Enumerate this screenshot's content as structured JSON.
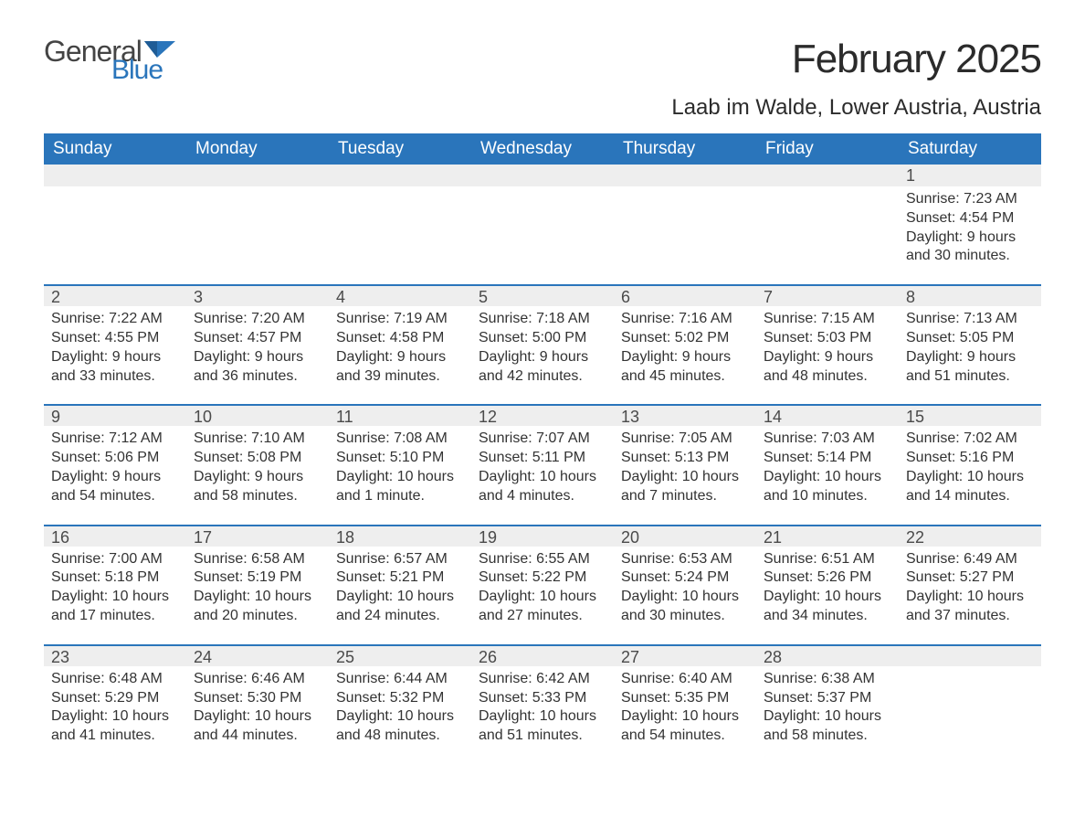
{
  "branding": {
    "logo_word1": "General",
    "logo_word2": "Blue",
    "logo_text_color": "#444444",
    "logo_accent_color": "#2a75bb"
  },
  "header": {
    "month_title": "February 2025",
    "location": "Laab im Walde, Lower Austria, Austria"
  },
  "calendar": {
    "header_bg": "#2a75bb",
    "header_fg": "#ffffff",
    "row_separator_color": "#2a75bb",
    "daynum_bg": "#eeeeee",
    "text_color": "#333333",
    "day_headers": [
      "Sunday",
      "Monday",
      "Tuesday",
      "Wednesday",
      "Thursday",
      "Friday",
      "Saturday"
    ],
    "weeks": [
      [
        {
          "day": "",
          "sunrise": "",
          "sunset": "",
          "daylight1": "",
          "daylight2": ""
        },
        {
          "day": "",
          "sunrise": "",
          "sunset": "",
          "daylight1": "",
          "daylight2": ""
        },
        {
          "day": "",
          "sunrise": "",
          "sunset": "",
          "daylight1": "",
          "daylight2": ""
        },
        {
          "day": "",
          "sunrise": "",
          "sunset": "",
          "daylight1": "",
          "daylight2": ""
        },
        {
          "day": "",
          "sunrise": "",
          "sunset": "",
          "daylight1": "",
          "daylight2": ""
        },
        {
          "day": "",
          "sunrise": "",
          "sunset": "",
          "daylight1": "",
          "daylight2": ""
        },
        {
          "day": "1",
          "sunrise": "Sunrise: 7:23 AM",
          "sunset": "Sunset: 4:54 PM",
          "daylight1": "Daylight: 9 hours",
          "daylight2": "and 30 minutes."
        }
      ],
      [
        {
          "day": "2",
          "sunrise": "Sunrise: 7:22 AM",
          "sunset": "Sunset: 4:55 PM",
          "daylight1": "Daylight: 9 hours",
          "daylight2": "and 33 minutes."
        },
        {
          "day": "3",
          "sunrise": "Sunrise: 7:20 AM",
          "sunset": "Sunset: 4:57 PM",
          "daylight1": "Daylight: 9 hours",
          "daylight2": "and 36 minutes."
        },
        {
          "day": "4",
          "sunrise": "Sunrise: 7:19 AM",
          "sunset": "Sunset: 4:58 PM",
          "daylight1": "Daylight: 9 hours",
          "daylight2": "and 39 minutes."
        },
        {
          "day": "5",
          "sunrise": "Sunrise: 7:18 AM",
          "sunset": "Sunset: 5:00 PM",
          "daylight1": "Daylight: 9 hours",
          "daylight2": "and 42 minutes."
        },
        {
          "day": "6",
          "sunrise": "Sunrise: 7:16 AM",
          "sunset": "Sunset: 5:02 PM",
          "daylight1": "Daylight: 9 hours",
          "daylight2": "and 45 minutes."
        },
        {
          "day": "7",
          "sunrise": "Sunrise: 7:15 AM",
          "sunset": "Sunset: 5:03 PM",
          "daylight1": "Daylight: 9 hours",
          "daylight2": "and 48 minutes."
        },
        {
          "day": "8",
          "sunrise": "Sunrise: 7:13 AM",
          "sunset": "Sunset: 5:05 PM",
          "daylight1": "Daylight: 9 hours",
          "daylight2": "and 51 minutes."
        }
      ],
      [
        {
          "day": "9",
          "sunrise": "Sunrise: 7:12 AM",
          "sunset": "Sunset: 5:06 PM",
          "daylight1": "Daylight: 9 hours",
          "daylight2": "and 54 minutes."
        },
        {
          "day": "10",
          "sunrise": "Sunrise: 7:10 AM",
          "sunset": "Sunset: 5:08 PM",
          "daylight1": "Daylight: 9 hours",
          "daylight2": "and 58 minutes."
        },
        {
          "day": "11",
          "sunrise": "Sunrise: 7:08 AM",
          "sunset": "Sunset: 5:10 PM",
          "daylight1": "Daylight: 10 hours",
          "daylight2": "and 1 minute."
        },
        {
          "day": "12",
          "sunrise": "Sunrise: 7:07 AM",
          "sunset": "Sunset: 5:11 PM",
          "daylight1": "Daylight: 10 hours",
          "daylight2": "and 4 minutes."
        },
        {
          "day": "13",
          "sunrise": "Sunrise: 7:05 AM",
          "sunset": "Sunset: 5:13 PM",
          "daylight1": "Daylight: 10 hours",
          "daylight2": "and 7 minutes."
        },
        {
          "day": "14",
          "sunrise": "Sunrise: 7:03 AM",
          "sunset": "Sunset: 5:14 PM",
          "daylight1": "Daylight: 10 hours",
          "daylight2": "and 10 minutes."
        },
        {
          "day": "15",
          "sunrise": "Sunrise: 7:02 AM",
          "sunset": "Sunset: 5:16 PM",
          "daylight1": "Daylight: 10 hours",
          "daylight2": "and 14 minutes."
        }
      ],
      [
        {
          "day": "16",
          "sunrise": "Sunrise: 7:00 AM",
          "sunset": "Sunset: 5:18 PM",
          "daylight1": "Daylight: 10 hours",
          "daylight2": "and 17 minutes."
        },
        {
          "day": "17",
          "sunrise": "Sunrise: 6:58 AM",
          "sunset": "Sunset: 5:19 PM",
          "daylight1": "Daylight: 10 hours",
          "daylight2": "and 20 minutes."
        },
        {
          "day": "18",
          "sunrise": "Sunrise: 6:57 AM",
          "sunset": "Sunset: 5:21 PM",
          "daylight1": "Daylight: 10 hours",
          "daylight2": "and 24 minutes."
        },
        {
          "day": "19",
          "sunrise": "Sunrise: 6:55 AM",
          "sunset": "Sunset: 5:22 PM",
          "daylight1": "Daylight: 10 hours",
          "daylight2": "and 27 minutes."
        },
        {
          "day": "20",
          "sunrise": "Sunrise: 6:53 AM",
          "sunset": "Sunset: 5:24 PM",
          "daylight1": "Daylight: 10 hours",
          "daylight2": "and 30 minutes."
        },
        {
          "day": "21",
          "sunrise": "Sunrise: 6:51 AM",
          "sunset": "Sunset: 5:26 PM",
          "daylight1": "Daylight: 10 hours",
          "daylight2": "and 34 minutes."
        },
        {
          "day": "22",
          "sunrise": "Sunrise: 6:49 AM",
          "sunset": "Sunset: 5:27 PM",
          "daylight1": "Daylight: 10 hours",
          "daylight2": "and 37 minutes."
        }
      ],
      [
        {
          "day": "23",
          "sunrise": "Sunrise: 6:48 AM",
          "sunset": "Sunset: 5:29 PM",
          "daylight1": "Daylight: 10 hours",
          "daylight2": "and 41 minutes."
        },
        {
          "day": "24",
          "sunrise": "Sunrise: 6:46 AM",
          "sunset": "Sunset: 5:30 PM",
          "daylight1": "Daylight: 10 hours",
          "daylight2": "and 44 minutes."
        },
        {
          "day": "25",
          "sunrise": "Sunrise: 6:44 AM",
          "sunset": "Sunset: 5:32 PM",
          "daylight1": "Daylight: 10 hours",
          "daylight2": "and 48 minutes."
        },
        {
          "day": "26",
          "sunrise": "Sunrise: 6:42 AM",
          "sunset": "Sunset: 5:33 PM",
          "daylight1": "Daylight: 10 hours",
          "daylight2": "and 51 minutes."
        },
        {
          "day": "27",
          "sunrise": "Sunrise: 6:40 AM",
          "sunset": "Sunset: 5:35 PM",
          "daylight1": "Daylight: 10 hours",
          "daylight2": "and 54 minutes."
        },
        {
          "day": "28",
          "sunrise": "Sunrise: 6:38 AM",
          "sunset": "Sunset: 5:37 PM",
          "daylight1": "Daylight: 10 hours",
          "daylight2": "and 58 minutes."
        },
        {
          "day": "",
          "sunrise": "",
          "sunset": "",
          "daylight1": "",
          "daylight2": ""
        }
      ]
    ]
  }
}
